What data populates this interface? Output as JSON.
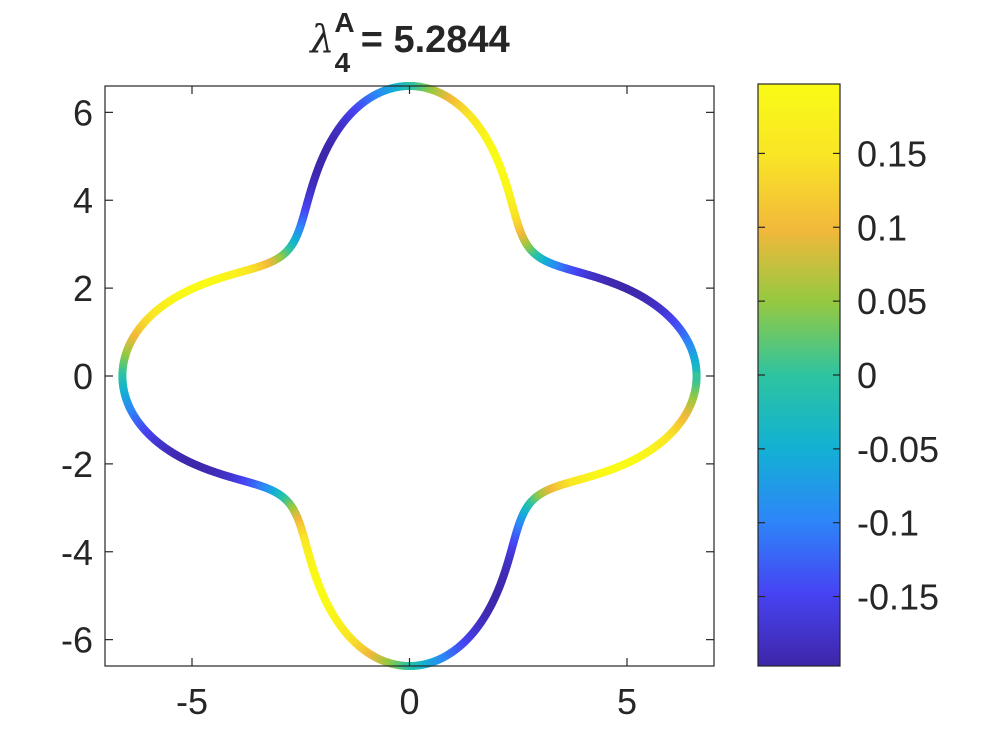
{
  "chart_data": {
    "type": "line",
    "title": {
      "symbol": "λ",
      "subscript": "4",
      "superscript": "A",
      "value_text": " = 5.2844"
    },
    "curve": {
      "description_r": "r(theta) = r0 + a*cos(4*theta)",
      "r0": 5.3,
      "a": 1.3,
      "color_function": "c(theta) = -0.195*sin(4*theta)",
      "color_amplitude": 0.195
    },
    "xlim": [
      -7.0,
      7.0
    ],
    "ylim": [
      -6.6,
      6.6
    ],
    "xticks": [
      -5,
      0,
      5
    ],
    "xtick_labels": [
      "-5",
      "0",
      "5"
    ],
    "yticks": [
      6,
      4,
      2,
      0,
      -2,
      -4,
      -6
    ],
    "ytick_labels": [
      "6",
      "4",
      "2",
      "0",
      "-2",
      "-4",
      "-6"
    ],
    "colorbar": {
      "clim": [
        -0.197,
        0.197
      ],
      "ticks": [
        0.15,
        0.1,
        0.05,
        0,
        -0.05,
        -0.1,
        -0.15
      ],
      "tick_labels": [
        "0.15",
        "0.1",
        "0.05",
        "0",
        "-0.05",
        "-0.1",
        "-0.15"
      ],
      "colormap": "parula"
    },
    "colors": {
      "axis": "#262626",
      "colormap_stops": [
        "#3e26a8",
        "#4743f3",
        "#2d86f8",
        "#12b1d3",
        "#2ec4a0",
        "#95c941",
        "#f2b83b",
        "#f9e426",
        "#f9fb15"
      ]
    }
  }
}
